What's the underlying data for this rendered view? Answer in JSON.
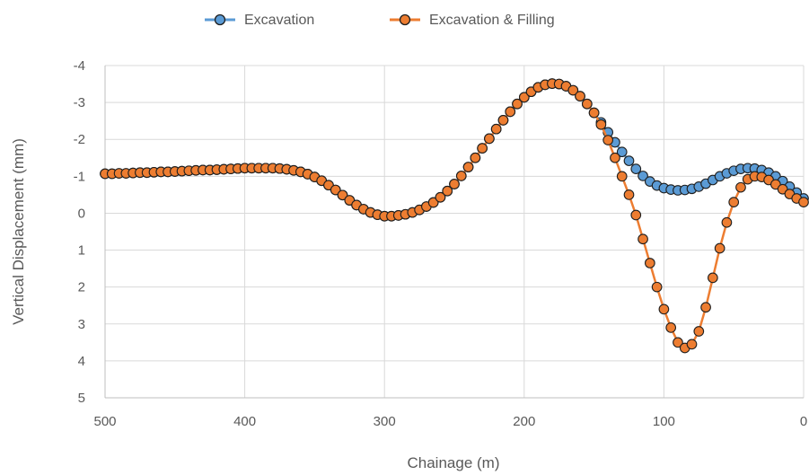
{
  "chart_data": {
    "type": "line",
    "title": "",
    "xlabel": "Chainage (m)",
    "ylabel": "Vertical Displacement (mm)",
    "xlim": [
      500,
      0
    ],
    "ylim": [
      5,
      -4
    ],
    "x_reversed": true,
    "y_reversed": true,
    "x_ticks": [
      500,
      400,
      300,
      200,
      100,
      0
    ],
    "x_tick_labels": [
      "500",
      "400",
      "300",
      "200",
      "100",
      "0"
    ],
    "y_ticks": [
      -4,
      -3,
      -2,
      -1,
      0,
      1,
      2,
      3,
      4,
      5
    ],
    "y_tick_labels": [
      "-4",
      "-3",
      "-2",
      "-1",
      "0",
      "1",
      "2",
      "3",
      "4",
      "5"
    ],
    "grid": true,
    "legend_position": "top",
    "colors": {
      "excavation": "#5B9BD5",
      "filling": "#ED7D31",
      "marker_edge": "#1f1f1f",
      "grid": "#d9d9d9",
      "axis": "#bfbfbf"
    },
    "series": [
      {
        "name": "Excavation",
        "x": [
          500,
          495,
          490,
          485,
          480,
          475,
          470,
          465,
          460,
          455,
          450,
          445,
          440,
          435,
          430,
          425,
          420,
          415,
          410,
          405,
          400,
          395,
          390,
          385,
          380,
          375,
          370,
          365,
          360,
          355,
          350,
          345,
          340,
          335,
          330,
          325,
          320,
          315,
          310,
          305,
          300,
          295,
          290,
          285,
          280,
          275,
          270,
          265,
          260,
          255,
          250,
          245,
          240,
          235,
          230,
          225,
          220,
          215,
          210,
          205,
          200,
          195,
          190,
          185,
          180,
          175,
          170,
          165,
          160,
          155,
          150,
          145,
          140,
          135,
          130,
          125,
          120,
          115,
          110,
          105,
          100,
          95,
          90,
          85,
          80,
          75,
          70,
          65,
          60,
          55,
          50,
          45,
          40,
          35,
          30,
          25,
          20,
          15,
          10,
          5,
          0
        ],
        "values": [
          -1.07,
          -1.07,
          -1.08,
          -1.08,
          -1.09,
          -1.1,
          -1.1,
          -1.11,
          -1.12,
          -1.12,
          -1.13,
          -1.14,
          -1.15,
          -1.16,
          -1.17,
          -1.17,
          -1.18,
          -1.19,
          -1.2,
          -1.21,
          -1.22,
          -1.22,
          -1.22,
          -1.22,
          -1.22,
          -1.21,
          -1.19,
          -1.16,
          -1.12,
          -1.06,
          -0.98,
          -0.88,
          -0.76,
          -0.63,
          -0.49,
          -0.35,
          -0.22,
          -0.11,
          -0.02,
          0.04,
          0.08,
          0.08,
          0.06,
          0.03,
          -0.02,
          -0.09,
          -0.18,
          -0.29,
          -0.43,
          -0.6,
          -0.79,
          -1.01,
          -1.25,
          -1.5,
          -1.76,
          -2.02,
          -2.28,
          -2.52,
          -2.75,
          -2.96,
          -3.14,
          -3.29,
          -3.41,
          -3.48,
          -3.51,
          -3.5,
          -3.44,
          -3.33,
          -3.17,
          -2.96,
          -2.72,
          -2.46,
          -2.19,
          -1.92,
          -1.66,
          -1.42,
          -1.2,
          -1.01,
          -0.86,
          -0.75,
          -0.68,
          -0.64,
          -0.62,
          -0.63,
          -0.66,
          -0.72,
          -0.8,
          -0.9,
          -1.0,
          -1.08,
          -1.15,
          -1.2,
          -1.22,
          -1.21,
          -1.17,
          -1.1,
          -1.0,
          -0.87,
          -0.72,
          -0.56,
          -0.4
        ]
      },
      {
        "name": "Excavation & Filling",
        "x": [
          500,
          495,
          490,
          485,
          480,
          475,
          470,
          465,
          460,
          455,
          450,
          445,
          440,
          435,
          430,
          425,
          420,
          415,
          410,
          405,
          400,
          395,
          390,
          385,
          380,
          375,
          370,
          365,
          360,
          355,
          350,
          345,
          340,
          335,
          330,
          325,
          320,
          315,
          310,
          305,
          300,
          295,
          290,
          285,
          280,
          275,
          270,
          265,
          260,
          255,
          250,
          245,
          240,
          235,
          230,
          225,
          220,
          215,
          210,
          205,
          200,
          195,
          190,
          185,
          180,
          175,
          170,
          165,
          160,
          155,
          150,
          145,
          140,
          135,
          130,
          125,
          120,
          115,
          110,
          105,
          100,
          95,
          90,
          85,
          80,
          75,
          70,
          65,
          60,
          55,
          50,
          45,
          40,
          35,
          30,
          25,
          20,
          15,
          10,
          5,
          0
        ],
        "values": [
          -1.07,
          -1.07,
          -1.08,
          -1.08,
          -1.09,
          -1.1,
          -1.1,
          -1.11,
          -1.12,
          -1.12,
          -1.13,
          -1.14,
          -1.15,
          -1.16,
          -1.17,
          -1.17,
          -1.18,
          -1.19,
          -1.2,
          -1.21,
          -1.22,
          -1.22,
          -1.22,
          -1.22,
          -1.22,
          -1.21,
          -1.19,
          -1.16,
          -1.12,
          -1.06,
          -0.98,
          -0.88,
          -0.76,
          -0.63,
          -0.49,
          -0.35,
          -0.22,
          -0.11,
          -0.02,
          0.04,
          0.08,
          0.08,
          0.06,
          0.03,
          -0.02,
          -0.09,
          -0.18,
          -0.29,
          -0.43,
          -0.6,
          -0.79,
          -1.01,
          -1.25,
          -1.5,
          -1.76,
          -2.02,
          -2.28,
          -2.52,
          -2.75,
          -2.96,
          -3.14,
          -3.29,
          -3.41,
          -3.48,
          -3.51,
          -3.5,
          -3.44,
          -3.33,
          -3.17,
          -2.96,
          -2.72,
          -2.4,
          -1.98,
          -1.5,
          -1.0,
          -0.5,
          0.05,
          0.7,
          1.35,
          2.0,
          2.6,
          3.1,
          3.5,
          3.65,
          3.55,
          3.2,
          2.55,
          1.75,
          0.95,
          0.25,
          -0.3,
          -0.7,
          -0.92,
          -1.0,
          -0.98,
          -0.9,
          -0.78,
          -0.65,
          -0.52,
          -0.4,
          -0.3
        ]
      }
    ]
  }
}
